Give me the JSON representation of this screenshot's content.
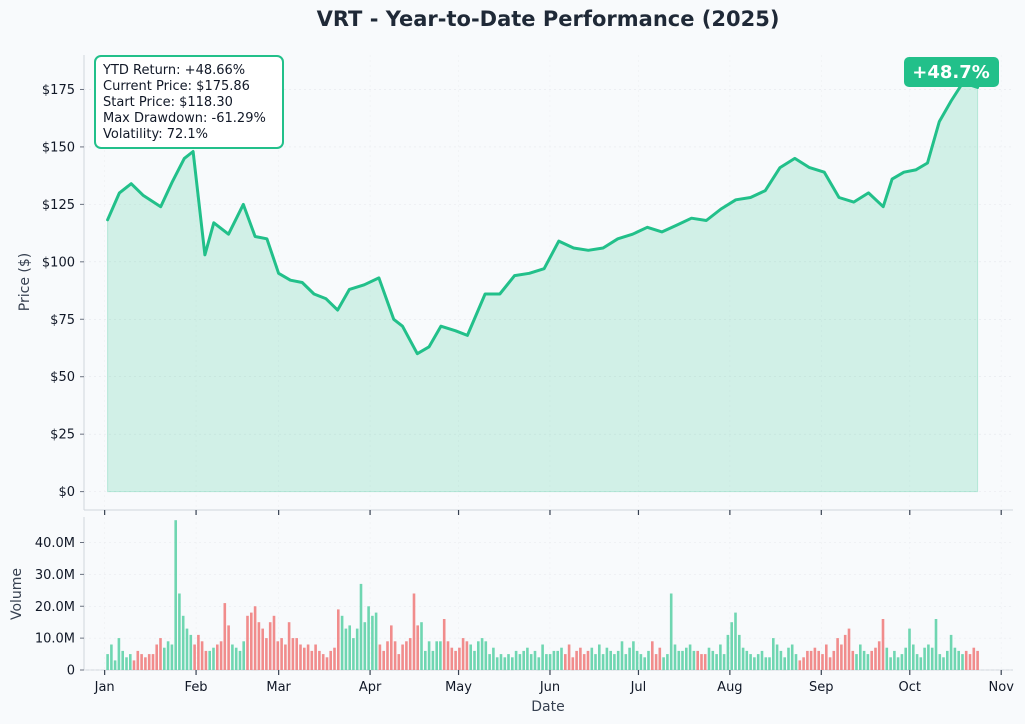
{
  "chart_data": {
    "type": "line",
    "title": "VRT - Year-to-Date Performance (2025)",
    "colors": {
      "line": "#22c08a",
      "fill": "#22c08a",
      "up": "#5fd1a8",
      "down": "#f08080",
      "badge": "#22c08a"
    },
    "price": {
      "ylabel": "Price ($)",
      "ylim": [
        -8,
        190
      ],
      "yticks": [
        0,
        25,
        50,
        75,
        100,
        125,
        150,
        175
      ],
      "ytick_labels": [
        "$0",
        "$25",
        "$50",
        "$75",
        "$100",
        "$125",
        "$150",
        "$175"
      ],
      "grid": true,
      "x": [
        "2025-01-02",
        "2025-01-06",
        "2025-01-10",
        "2025-01-14",
        "2025-01-20",
        "2025-01-24",
        "2025-01-28",
        "2025-01-31",
        "2025-02-04",
        "2025-02-07",
        "2025-02-12",
        "2025-02-17",
        "2025-02-21",
        "2025-02-25",
        "2025-03-01",
        "2025-03-05",
        "2025-03-09",
        "2025-03-13",
        "2025-03-17",
        "2025-03-21",
        "2025-03-25",
        "2025-03-30",
        "2025-04-04",
        "2025-04-09",
        "2025-04-12",
        "2025-04-17",
        "2025-04-21",
        "2025-04-25",
        "2025-04-30",
        "2025-05-04",
        "2025-05-10",
        "2025-05-15",
        "2025-05-20",
        "2025-05-25",
        "2025-05-30",
        "2025-06-04",
        "2025-06-09",
        "2025-06-14",
        "2025-06-19",
        "2025-06-24",
        "2025-06-29",
        "2025-07-04",
        "2025-07-09",
        "2025-07-14",
        "2025-07-19",
        "2025-07-24",
        "2025-07-29",
        "2025-08-03",
        "2025-08-08",
        "2025-08-13",
        "2025-08-18",
        "2025-08-23",
        "2025-08-28",
        "2025-09-02",
        "2025-09-07",
        "2025-09-12",
        "2025-09-17",
        "2025-09-22",
        "2025-09-25",
        "2025-09-29",
        "2025-10-03",
        "2025-10-07",
        "2025-10-11",
        "2025-10-15",
        "2025-10-19",
        "2025-10-24"
      ],
      "values": [
        118.3,
        130,
        134,
        129,
        124,
        135,
        145,
        148,
        103,
        117,
        112,
        125,
        111,
        110,
        95,
        92,
        91,
        86,
        84,
        79,
        88,
        90,
        93,
        75,
        72,
        60,
        63,
        72,
        70,
        68,
        86,
        86,
        94,
        95,
        97,
        109,
        106,
        105,
        106,
        110,
        112,
        115,
        113,
        116,
        119,
        118,
        123,
        127,
        128,
        131,
        141,
        145,
        141,
        139,
        128,
        126,
        130,
        124,
        136,
        139,
        140,
        143,
        161,
        170,
        178,
        175.86
      ],
      "xlim": [
        "2024-12-25",
        "2025-11-05"
      ],
      "xticks": [
        "2025-01-01",
        "2025-02-01",
        "2025-03-01",
        "2025-04-01",
        "2025-05-01",
        "2025-06-01",
        "2025-07-01",
        "2025-08-01",
        "2025-09-01",
        "2025-10-01",
        "2025-11-01"
      ],
      "xtick_labels": [
        "Jan",
        "Feb",
        "Mar",
        "Apr",
        "May",
        "Jun",
        "Jul",
        "Aug",
        "Sep",
        "Oct",
        "Nov"
      ]
    },
    "volume": {
      "ylabel": "Volume",
      "xlabel": "Date",
      "ylim": [
        0,
        48
      ],
      "yticks": [
        0,
        10,
        20,
        30,
        40
      ],
      "ytick_labels": [
        "0",
        "10.0M",
        "20.0M",
        "30.0M",
        "40.0M"
      ],
      "unit": "millions",
      "values": [
        5,
        8,
        3,
        10,
        6,
        4,
        5,
        3,
        6,
        5,
        4,
        5,
        5,
        8,
        10,
        7,
        9,
        8,
        47,
        24,
        17,
        13,
        11,
        8,
        11,
        9,
        6,
        6,
        7,
        8,
        9,
        21,
        14,
        8,
        7,
        6,
        9,
        17,
        18,
        20,
        15,
        13,
        10,
        15,
        17,
        9,
        10,
        8,
        15,
        10,
        10,
        8,
        7,
        8,
        6,
        8,
        6,
        5,
        4,
        6,
        7,
        19,
        17,
        13,
        14,
        10,
        13,
        27,
        15,
        20,
        17,
        18,
        8,
        6,
        9,
        14,
        9,
        5,
        8,
        9,
        10,
        24,
        14,
        15,
        6,
        9,
        6,
        9,
        9,
        16,
        9,
        7,
        6,
        7,
        10,
        9,
        8,
        6,
        9,
        10,
        9,
        5,
        7,
        4,
        5,
        4,
        5,
        4,
        6,
        5,
        6,
        7,
        5,
        6,
        4,
        8,
        5,
        5,
        6,
        6,
        7,
        5,
        8,
        4,
        6,
        7,
        5,
        6,
        7,
        5,
        8,
        5,
        7,
        6,
        5,
        6,
        9,
        5,
        7,
        9,
        6,
        5,
        4,
        6,
        9,
        5,
        7,
        4,
        5,
        24,
        8,
        6,
        6,
        7,
        8,
        6,
        6,
        5,
        5,
        7,
        6,
        5,
        8,
        5,
        11,
        15,
        18,
        11,
        7,
        6,
        5,
        4,
        5,
        6,
        4,
        4,
        10,
        8,
        6,
        4,
        7,
        8,
        5,
        3,
        4,
        6,
        6,
        7,
        6,
        5,
        8,
        4,
        6,
        10,
        8,
        11,
        13,
        6,
        5,
        8,
        6,
        5,
        6,
        7,
        9,
        16,
        7,
        4,
        6,
        4,
        5,
        7,
        13,
        8,
        5,
        4,
        7,
        8,
        7,
        16,
        5,
        4,
        6,
        11,
        7,
        6,
        5,
        6,
        5,
        7,
        6
      ]
    },
    "stats_box": {
      "lines": [
        "YTD Return: +48.66%",
        "Current Price: $175.86",
        "Start Price: $118.30",
        "Max Drawdown: -61.29%",
        "Volatility: 72.1%"
      ],
      "placement": "top-left"
    },
    "badge": {
      "text": "+48.7%",
      "placement": "top-right"
    }
  }
}
